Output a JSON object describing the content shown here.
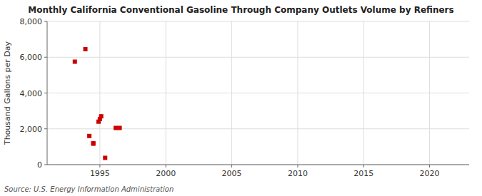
{
  "chart_data": {
    "type": "scatter",
    "title": "Monthly California Conventional Gasoline Through Company Outlets Volume by Refiners",
    "ylabel": "Thousand Gallons per Day",
    "source": "Source: U.S. Energy Information Administration",
    "color": "#cc0000",
    "marker": "square",
    "grid": true,
    "xlim": [
      1991,
      2023
    ],
    "ylim": [
      0,
      8000
    ],
    "xticks": [
      1995,
      2000,
      2005,
      2010,
      2015,
      2020
    ],
    "yticks": [
      0,
      {
        "value": 2000,
        "label": "2,000"
      },
      {
        "value": 4000,
        "label": "4,000"
      },
      {
        "value": 6000,
        "label": "6,000"
      },
      {
        "value": 8000,
        "label": "8,000"
      }
    ],
    "x": [
      1993.1,
      1993.9,
      1994.2,
      1994.5,
      1994.5,
      1994.9,
      1995.0,
      1995.1,
      1995.4,
      1996.2,
      1996.5
    ],
    "values": [
      5750,
      6450,
      1600,
      1200,
      1170,
      2400,
      2550,
      2700,
      380,
      2050,
      2050
    ]
  }
}
